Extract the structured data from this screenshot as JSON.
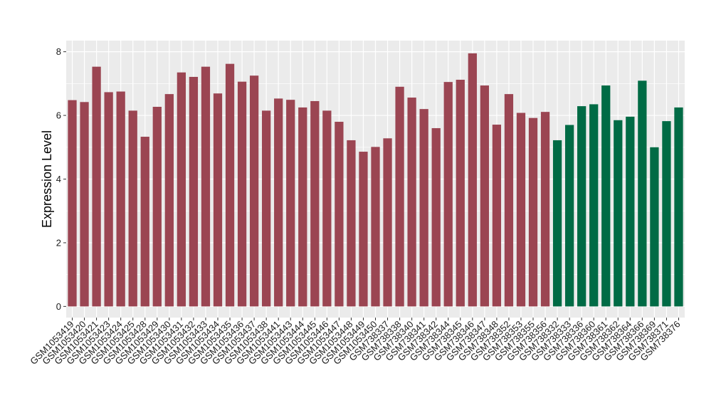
{
  "chart_data": {
    "type": "bar",
    "ylabel": "Expression Level",
    "xlabel": "",
    "ylim": [
      -0.35,
      8.35
    ],
    "yticks": [
      0,
      2,
      4,
      6,
      8
    ],
    "grid": true,
    "colors": {
      "group1": "#9b4552",
      "group2": "#006b45",
      "panel": "#ebebeb",
      "grid": "#ffffff"
    },
    "categories": [
      "GSM1053419",
      "GSM1053420",
      "GSM1053421",
      "GSM1053423",
      "GSM1053424",
      "GSM1053425",
      "GSM1053428",
      "GSM1053429",
      "GSM1053430",
      "GSM1053431",
      "GSM1053432",
      "GSM1053433",
      "GSM1053434",
      "GSM1053435",
      "GSM1053436",
      "GSM1053437",
      "GSM1053438",
      "GSM1053441",
      "GSM1053443",
      "GSM1053444",
      "GSM1053445",
      "GSM1053446",
      "GSM1053447",
      "GSM1053448",
      "GSM1053449",
      "GSM1053450",
      "GSM738337",
      "GSM738338",
      "GSM738340",
      "GSM738341",
      "GSM738342",
      "GSM738344",
      "GSM738345",
      "GSM738346",
      "GSM738347",
      "GSM738348",
      "GSM738352",
      "GSM738353",
      "GSM738355",
      "GSM738356",
      "GSM738332",
      "GSM738333",
      "GSM738336",
      "GSM738360",
      "GSM738361",
      "GSM738362",
      "GSM738364",
      "GSM738366",
      "GSM738369",
      "GSM738371",
      "GSM738376"
    ],
    "values": [
      6.48,
      6.42,
      7.53,
      6.73,
      6.75,
      6.15,
      5.33,
      6.27,
      6.67,
      7.35,
      7.21,
      7.53,
      6.69,
      7.62,
      7.06,
      7.25,
      6.15,
      6.53,
      6.49,
      6.25,
      6.45,
      6.15,
      5.8,
      5.22,
      4.86,
      5.01,
      5.28,
      6.9,
      6.56,
      6.2,
      5.6,
      7.05,
      7.12,
      7.95,
      6.94,
      5.71,
      6.67,
      6.08,
      5.92,
      6.11,
      5.22,
      5.7,
      6.29,
      6.35,
      6.94,
      5.85,
      5.96,
      7.09,
      5.0,
      5.82,
      6.25
    ],
    "groups": [
      1,
      1,
      1,
      1,
      1,
      1,
      1,
      1,
      1,
      1,
      1,
      1,
      1,
      1,
      1,
      1,
      1,
      1,
      1,
      1,
      1,
      1,
      1,
      1,
      1,
      1,
      1,
      1,
      1,
      1,
      1,
      1,
      1,
      1,
      1,
      1,
      1,
      1,
      1,
      1,
      2,
      2,
      2,
      2,
      2,
      2,
      2,
      2,
      2,
      2,
      2
    ]
  }
}
